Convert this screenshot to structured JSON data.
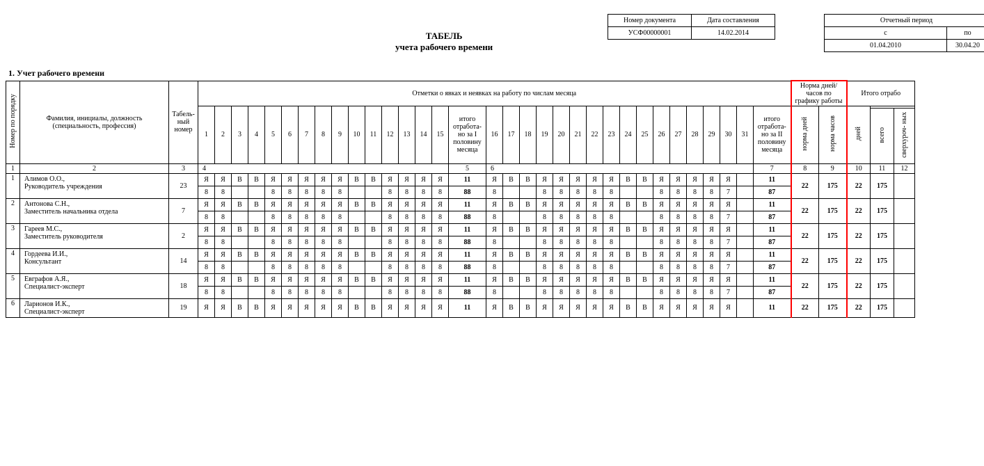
{
  "meta": {
    "doc_number_label": "Номер документа",
    "doc_date_label": "Дата составления",
    "doc_number": "УСФ00000001",
    "doc_date": "14.02.2014",
    "period_label": "Отчетный период",
    "from_label": "с",
    "to_label": "по",
    "from": "01.04.2010",
    "to": "30.04.20",
    "title": "ТАБЕЛЬ",
    "subtitle": "учета рабочего времени",
    "section1": "1. Учет рабочего времени"
  },
  "headers": {
    "num": "Номер по порядку",
    "fio": "Фамилия, инициалы, должность (специальность, профессия)",
    "tab": "Табель-\nный номер",
    "marks": "Отметки о явках и неявках на работу по числам месяца",
    "half1": "итого отработа-\nно за I половину месяца",
    "half2": "итого отработа-\nно за II половину месяца",
    "norm": "Норма дней/часов по графику работы",
    "norm_d": "норма дней",
    "norm_h": "норма часов",
    "worked": "Итого отрабо",
    "dni": "дней",
    "vsego": "всего",
    "over": "сверхуроч-\nных"
  },
  "days1": [
    1,
    2,
    3,
    4,
    5,
    6,
    7,
    8,
    9,
    10,
    11,
    12,
    13,
    14,
    15
  ],
  "days2": [
    16,
    17,
    18,
    19,
    20,
    21,
    22,
    23,
    24,
    25,
    26,
    27,
    28,
    29,
    30,
    31
  ],
  "colnums": {
    "c1": "1",
    "c2": "2",
    "c3": "3",
    "c4": "4",
    "c5": "5",
    "c6": "6",
    "c7": "7",
    "c8": "8",
    "c9": "9",
    "c10": "10",
    "c11": "11",
    "c12": "12"
  },
  "codes_row": [
    "Я",
    "Я",
    "В",
    "В",
    "Я",
    "Я",
    "Я",
    "Я",
    "Я",
    "В",
    "В",
    "Я",
    "Я",
    "Я",
    "Я"
  ],
  "codes_row2": [
    "Я",
    "В",
    "В",
    "Я",
    "Я",
    "Я",
    "Я",
    "Я",
    "В",
    "В",
    "Я",
    "Я",
    "Я",
    "Я",
    "Я",
    ""
  ],
  "codes_row2_short": [
    "Я",
    "В",
    "В",
    "Я",
    "Я",
    "Я",
    "Я",
    "Я",
    "В",
    "В",
    "Я",
    "Я",
    "Я",
    "Я",
    "Я"
  ],
  "hours_row": [
    "8",
    "8",
    "",
    "",
    "8",
    "8",
    "8",
    "8",
    "8",
    "",
    "",
    "8",
    "8",
    "8",
    "8"
  ],
  "hours_row2": [
    "8",
    "",
    "",
    "8",
    "8",
    "8",
    "8",
    "8",
    "",
    "",
    "8",
    "8",
    "8",
    "8",
    "7",
    ""
  ],
  "half1_total_d": "11",
  "half1_total_h": "88",
  "half2_total_d": "11",
  "half2_total_h": "87",
  "norm_days": "22",
  "norm_hours": "175",
  "worked_days": "22",
  "worked_total": "175",
  "employees": [
    {
      "n": "1",
      "name": "Алимов О.О.,",
      "pos": "Руководитель учреждения",
      "tab": "23"
    },
    {
      "n": "2",
      "name": "Антонова С.Н.,",
      "pos": "Заместитель начальника отдела",
      "tab": "7"
    },
    {
      "n": "3",
      "name": "Гареев М.С.,",
      "pos": "Заместитель руководителя",
      "tab": "2"
    },
    {
      "n": "4",
      "name": "Гордеева И.И.,",
      "pos": "Консультант",
      "tab": "14"
    },
    {
      "n": "5",
      "name": "Евграфов А.Я.,",
      "pos": "Специалист-эксперт",
      "tab": "18"
    },
    {
      "n": "6",
      "name": "Ларионов И.К.,",
      "pos": "Специалист-эксперт",
      "tab": "19"
    }
  ]
}
